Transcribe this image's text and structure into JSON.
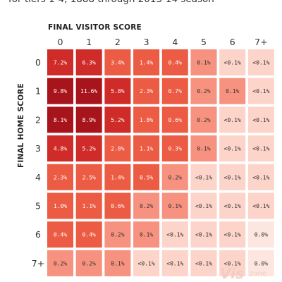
{
  "chart_data": {
    "type": "heatmap",
    "subtitle": "for tiers 1-4, 1888 through 2013-14 season",
    "xlabel": "FINAL VISITOR SCORE",
    "ylabel": "FINAL HOME SCORE",
    "x_categories": [
      "0",
      "1",
      "2",
      "3",
      "4",
      "5",
      "6",
      "7+"
    ],
    "y_categories": [
      "0",
      "1",
      "2",
      "3",
      "4",
      "5",
      "6",
      "7+"
    ],
    "cells": [
      [
        "7.2%",
        "6.3%",
        "3.4%",
        "1.4%",
        "0.4%",
        "0.1%",
        "<0.1%",
        "<0.1%"
      ],
      [
        "9.8%",
        "11.6%",
        "5.8%",
        "2.3%",
        "0.7%",
        "0.2%",
        "0.1%",
        "<0.1%"
      ],
      [
        "8.1%",
        "8.9%",
        "5.2%",
        "1.8%",
        "0.6%",
        "0.2%",
        "<0.1%",
        "<0.1%"
      ],
      [
        "4.8%",
        "5.2%",
        "2.8%",
        "1.1%",
        "0.3%",
        "0.1%",
        "<0.1%",
        "<0.1%"
      ],
      [
        "2.3%",
        "2.5%",
        "1.4%",
        "0.5%",
        "0.2%",
        "<0.1%",
        "<0.1%",
        "<0.1%"
      ],
      [
        "1.0%",
        "1.1%",
        "0.6%",
        "0.2%",
        "0.1%",
        "<0.1%",
        "<0.1%",
        "<0.1%"
      ],
      [
        "0.4%",
        "0.4%",
        "0.2%",
        "0.1%",
        "<0.1%",
        "<0.1%",
        "<0.1%",
        "0.0%"
      ],
      [
        "0.2%",
        "0.2%",
        "0.1%",
        "<0.1%",
        "<0.1%",
        "<0.1%",
        "<0.1%",
        "0.0%"
      ]
    ],
    "colors": {
      "max": "#a8141c",
      "high": "#cf2b28",
      "mid": "#ec5b43",
      "low": "#f6927f",
      "min": "#fcd4ca",
      "zero": "#fde6df"
    }
  },
  "watermark": {
    "text_a": "Vis",
    "text_b": "zone"
  }
}
